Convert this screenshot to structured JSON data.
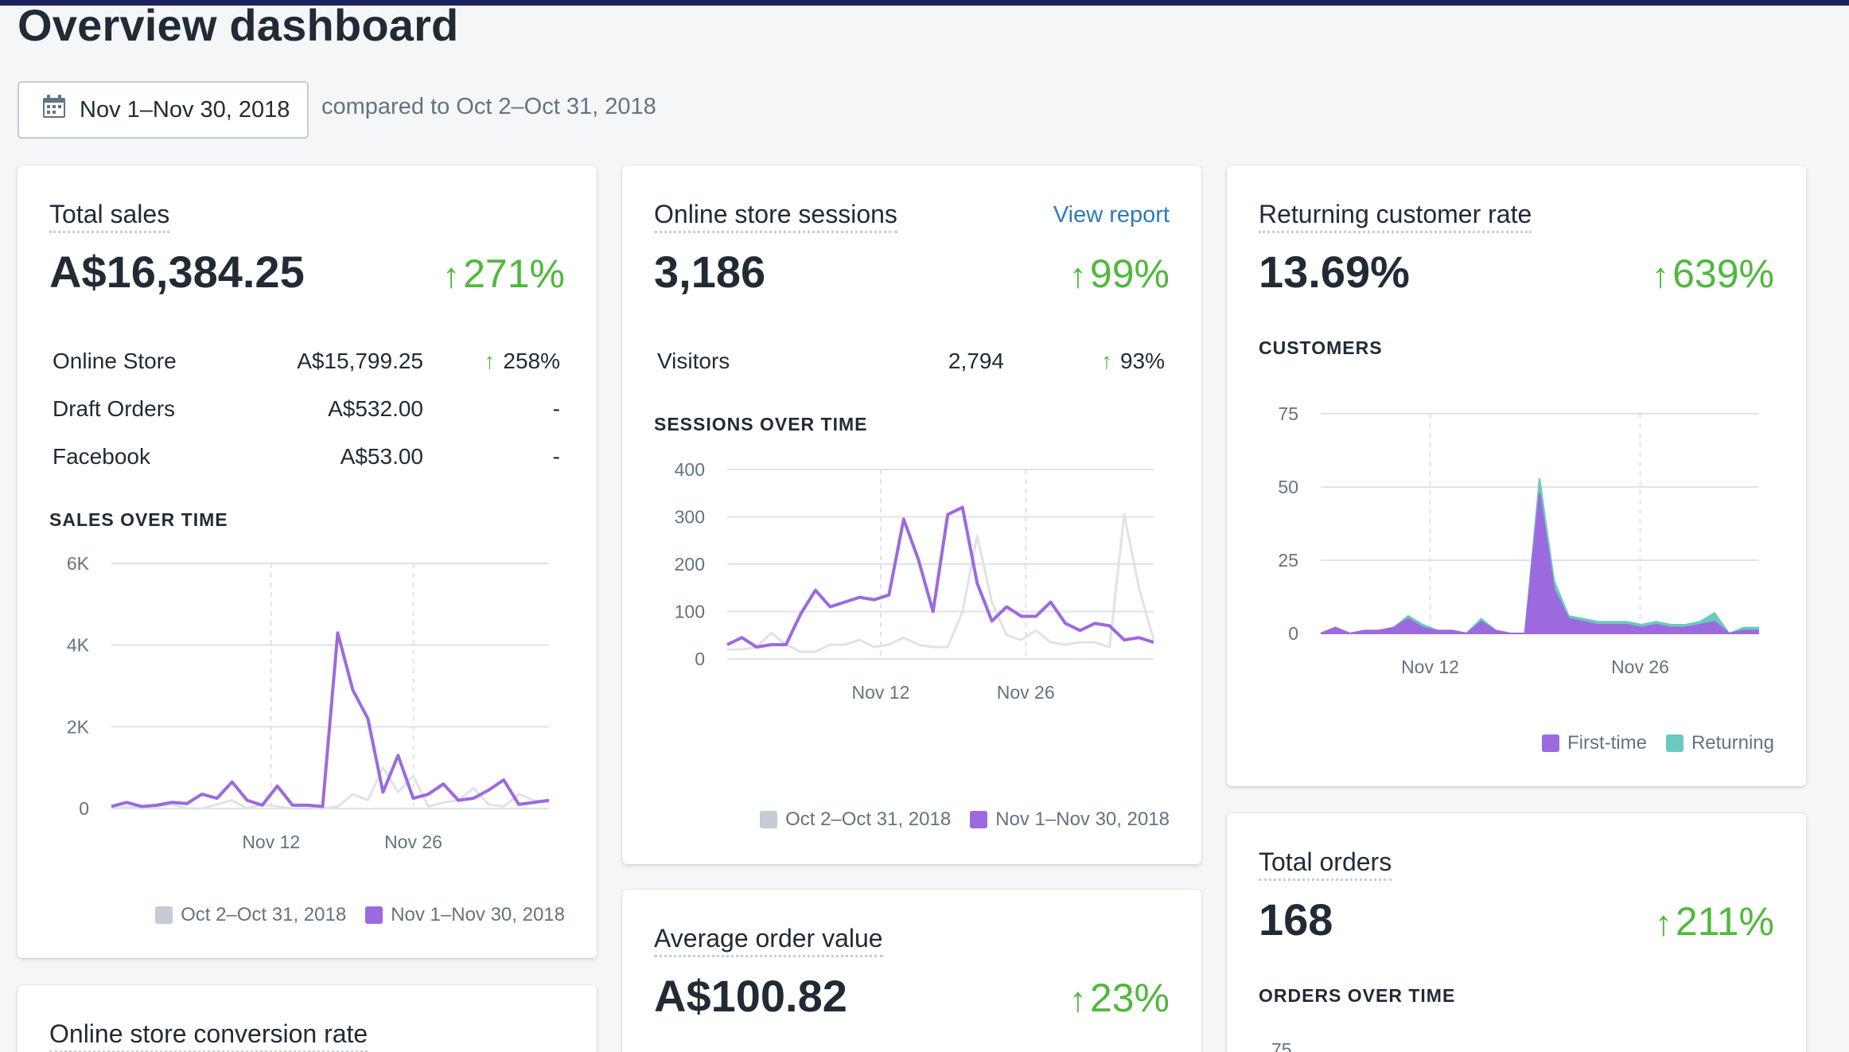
{
  "page_title": "Overview dashboard",
  "date_range": {
    "button_label": "Nov 1–Nov 30, 2018",
    "compare_text": "compared to Oct 2–Oct 31, 2018"
  },
  "colors": {
    "accent_purple": "#9c6ade",
    "prior_gray": "#dfe3e8",
    "positive_green": "#50b83c",
    "returning_teal": "#6bc9bf",
    "link_blue": "#2f7ab8"
  },
  "total_sales": {
    "title": "Total sales",
    "value": "A$16,384.25",
    "change_arrow": "↑",
    "change": "271%",
    "breakdown": [
      {
        "label": "Online Store",
        "value": "A$15,799.25",
        "arrow": "↑",
        "change": "258%"
      },
      {
        "label": "Draft Orders",
        "value": "A$532.00",
        "arrow": "",
        "change": "-"
      },
      {
        "label": "Facebook",
        "value": "A$53.00",
        "arrow": "",
        "change": "-"
      }
    ],
    "chart_label": "SALES OVER TIME",
    "legend": [
      "Oct 2–Oct 31, 2018",
      "Nov 1–Nov 30, 2018"
    ]
  },
  "sessions": {
    "title": "Online store sessions",
    "view_report": "View report",
    "value": "3,186",
    "change_arrow": "↑",
    "change": "99%",
    "visitors": {
      "label": "Visitors",
      "value": "2,794",
      "arrow": "↑",
      "change": "93%"
    },
    "chart_label": "SESSIONS OVER TIME",
    "legend": [
      "Oct 2–Oct 31, 2018",
      "Nov 1–Nov 30, 2018"
    ]
  },
  "returning": {
    "title": "Returning customer rate",
    "value": "13.69%",
    "change_arrow": "↑",
    "change": "639%",
    "chart_label": "CUSTOMERS",
    "legend": [
      "First-time",
      "Returning"
    ]
  },
  "total_orders": {
    "title": "Total orders",
    "value": "168",
    "change_arrow": "↑",
    "change": "211%",
    "chart_label": "ORDERS OVER TIME",
    "partial_tick": "75"
  },
  "aov": {
    "title": "Average order value",
    "value": "A$100.82",
    "change_arrow": "↑",
    "change": "23%"
  },
  "conversion": {
    "title": "Online store conversion rate"
  },
  "chart_data": [
    {
      "type": "line",
      "title": "SALES OVER TIME",
      "x_ticks": [
        "Nov 12",
        "Nov 26"
      ],
      "y_ticks": [
        "0",
        "2K",
        "4K",
        "6K"
      ],
      "ylim": [
        0,
        6000
      ],
      "grid": true,
      "legend_position": "bottom-right",
      "series": [
        {
          "name": "Oct 2–Oct 31, 2018",
          "values": [
            0,
            50,
            0,
            50,
            100,
            0,
            0,
            100,
            200,
            0,
            100,
            50,
            0,
            0,
            0,
            50,
            350,
            200,
            1000,
            400,
            800,
            50,
            150,
            200,
            500,
            100,
            50,
            350,
            200,
            150
          ]
        },
        {
          "name": "Nov 1–Nov 30, 2018",
          "values": [
            50,
            150,
            50,
            80,
            150,
            120,
            350,
            250,
            650,
            200,
            80,
            550,
            80,
            80,
            50,
            4300,
            2900,
            2200,
            400,
            1300,
            250,
            350,
            600,
            200,
            250,
            450,
            700,
            100,
            150,
            200
          ]
        }
      ]
    },
    {
      "type": "line",
      "title": "SESSIONS OVER TIME",
      "x_ticks": [
        "Nov 12",
        "Nov 26"
      ],
      "y_ticks": [
        "0",
        "100",
        "200",
        "300",
        "400"
      ],
      "ylim": [
        0,
        400
      ],
      "grid": true,
      "legend_position": "bottom-right",
      "series": [
        {
          "name": "Oct 2–Oct 31, 2018",
          "values": [
            20,
            20,
            25,
            55,
            30,
            15,
            15,
            30,
            30,
            40,
            25,
            30,
            45,
            30,
            25,
            25,
            100,
            260,
            120,
            50,
            40,
            60,
            35,
            30,
            35,
            35,
            25,
            305,
            150,
            40
          ]
        },
        {
          "name": "Nov 1–Nov 30, 2018",
          "values": [
            30,
            45,
            25,
            30,
            30,
            95,
            145,
            110,
            120,
            130,
            125,
            135,
            295,
            210,
            100,
            305,
            320,
            160,
            80,
            110,
            90,
            90,
            120,
            75,
            60,
            75,
            70,
            40,
            45,
            35
          ]
        }
      ]
    },
    {
      "type": "area",
      "title": "CUSTOMERS",
      "x_ticks": [
        "Nov 12",
        "Nov 26"
      ],
      "y_ticks": [
        "0",
        "25",
        "50",
        "75"
      ],
      "ylim": [
        0,
        75
      ],
      "grid": true,
      "legend_position": "bottom-right",
      "series": [
        {
          "name": "First-time",
          "values": [
            0,
            2,
            0,
            1,
            1,
            2,
            5,
            2,
            1,
            1,
            0,
            4,
            1,
            0,
            0,
            48,
            15,
            5,
            4,
            3,
            3,
            3,
            2,
            3,
            2,
            2,
            3,
            4,
            0,
            1,
            1
          ]
        },
        {
          "name": "Returning",
          "values": [
            0,
            0,
            0,
            0,
            0,
            0,
            1,
            1,
            0,
            0,
            0,
            1,
            0,
            0,
            0,
            5,
            3,
            1,
            1,
            1,
            1,
            1,
            1,
            1,
            1,
            1,
            1,
            3,
            0,
            1,
            1
          ]
        }
      ]
    }
  ]
}
